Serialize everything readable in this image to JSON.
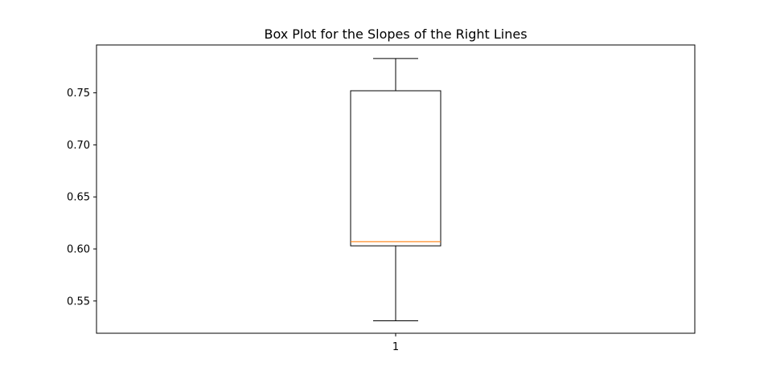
{
  "chart_data": {
    "type": "box",
    "title": "Box Plot for the Slopes of the Right Lines",
    "xlabel": "",
    "ylabel": "",
    "categories": [
      "1"
    ],
    "boxes": [
      {
        "whisker_low": 0.531,
        "q1": 0.603,
        "median": 0.607,
        "q3": 0.752,
        "whisker_high": 0.783
      }
    ],
    "ylim": [
      0.519,
      0.796
    ],
    "yticks": [
      0.55,
      0.6,
      0.65,
      0.7,
      0.75
    ],
    "ytick_labels": [
      "0.55",
      "0.60",
      "0.65",
      "0.70",
      "0.75"
    ],
    "grid": false,
    "colors": {
      "box": "#000000",
      "median": "#ff7f0e",
      "whisker": "#000000"
    }
  }
}
